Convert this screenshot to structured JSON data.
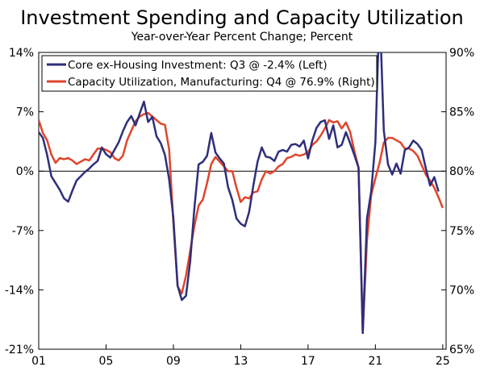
{
  "chart_data": {
    "type": "line",
    "title": "Investment Spending and Capacity Utilization",
    "subtitle": "Year-over-Year Percent Change; Percent",
    "xlabel": "",
    "ylabel_left": "",
    "ylabel_right": "",
    "x_ticks": [
      "01",
      "05",
      "09",
      "13",
      "17",
      "21",
      "25"
    ],
    "x_tick_values": [
      2001,
      2005,
      2009,
      2013,
      2017,
      2021,
      2025
    ],
    "xlim": [
      2001,
      2025.2
    ],
    "y_left_ticks": [
      "14%",
      "7%",
      "0%",
      "-7%",
      "-14%",
      "-21%"
    ],
    "y_left_tick_values": [
      14,
      7,
      0,
      -7,
      -14,
      -21
    ],
    "ylim_left": [
      -21,
      14
    ],
    "y_right_ticks": [
      "90%",
      "85%",
      "80%",
      "75%",
      "70%",
      "65%"
    ],
    "y_right_tick_values": [
      90,
      85,
      80,
      75,
      70,
      65
    ],
    "ylim_right": [
      65,
      90
    ],
    "zero_line": 0,
    "legend": "top-left",
    "grid": false,
    "series": [
      {
        "name": "Core ex-Housing Investment: Q3 @ -2.4% (Left)",
        "axis": "left",
        "color": "#2e2f7a",
        "points": [
          [
            2001.0,
            4.6
          ],
          [
            2001.25,
            3.9
          ],
          [
            2001.5,
            1.9
          ],
          [
            2001.75,
            -0.6
          ],
          [
            2002.0,
            -1.4
          ],
          [
            2002.25,
            -2.2
          ],
          [
            2002.5,
            -3.2
          ],
          [
            2002.75,
            -3.6
          ],
          [
            2003.0,
            -2.3
          ],
          [
            2003.25,
            -1.1
          ],
          [
            2003.5,
            -0.6
          ],
          [
            2003.75,
            -0.1
          ],
          [
            2004.0,
            0.3
          ],
          [
            2004.25,
            0.8
          ],
          [
            2004.5,
            1.2
          ],
          [
            2004.75,
            2.8
          ],
          [
            2005.0,
            2.0
          ],
          [
            2005.25,
            1.6
          ],
          [
            2005.5,
            2.5
          ],
          [
            2005.75,
            3.4
          ],
          [
            2006.0,
            4.7
          ],
          [
            2006.25,
            5.8
          ],
          [
            2006.5,
            6.5
          ],
          [
            2006.75,
            5.4
          ],
          [
            2007.0,
            6.8
          ],
          [
            2007.25,
            8.2
          ],
          [
            2007.5,
            5.8
          ],
          [
            2007.75,
            6.4
          ],
          [
            2008.0,
            4.1
          ],
          [
            2008.25,
            3.3
          ],
          [
            2008.5,
            1.9
          ],
          [
            2008.75,
            -1.0
          ],
          [
            2009.0,
            -5.5
          ],
          [
            2009.25,
            -13.5
          ],
          [
            2009.5,
            -15.2
          ],
          [
            2009.75,
            -14.7
          ],
          [
            2010.0,
            -10.6
          ],
          [
            2010.25,
            -4.3
          ],
          [
            2010.5,
            0.8
          ],
          [
            2010.75,
            1.1
          ],
          [
            2011.0,
            1.8
          ],
          [
            2011.25,
            4.5
          ],
          [
            2011.5,
            2.2
          ],
          [
            2011.75,
            1.5
          ],
          [
            2012.0,
            0.9
          ],
          [
            2012.25,
            -1.9
          ],
          [
            2012.5,
            -3.4
          ],
          [
            2012.75,
            -5.6
          ],
          [
            2013.0,
            -6.2
          ],
          [
            2013.25,
            -6.5
          ],
          [
            2013.5,
            -4.8
          ],
          [
            2013.75,
            -1.7
          ],
          [
            2014.0,
            1.1
          ],
          [
            2014.25,
            2.8
          ],
          [
            2014.5,
            1.7
          ],
          [
            2014.75,
            1.6
          ],
          [
            2015.0,
            1.2
          ],
          [
            2015.25,
            2.3
          ],
          [
            2015.5,
            2.5
          ],
          [
            2015.75,
            2.3
          ],
          [
            2016.0,
            3.1
          ],
          [
            2016.25,
            3.2
          ],
          [
            2016.5,
            2.9
          ],
          [
            2016.75,
            3.6
          ],
          [
            2017.0,
            1.5
          ],
          [
            2017.25,
            3.6
          ],
          [
            2017.5,
            5.1
          ],
          [
            2017.75,
            5.8
          ],
          [
            2018.0,
            6.0
          ],
          [
            2018.25,
            3.8
          ],
          [
            2018.5,
            5.4
          ],
          [
            2018.75,
            2.8
          ],
          [
            2019.0,
            3.1
          ],
          [
            2019.25,
            4.6
          ],
          [
            2019.5,
            3.3
          ],
          [
            2019.75,
            1.9
          ],
          [
            2020.0,
            0.4
          ],
          [
            2020.25,
            -19.1
          ],
          [
            2020.5,
            -5.6
          ],
          [
            2020.75,
            -2.4
          ],
          [
            2021.0,
            3.4
          ],
          [
            2021.25,
            19.5
          ],
          [
            2021.5,
            4.8
          ],
          [
            2021.75,
            0.8
          ],
          [
            2022.0,
            -0.4
          ],
          [
            2022.25,
            0.9
          ],
          [
            2022.5,
            -0.3
          ],
          [
            2022.75,
            2.5
          ],
          [
            2023.0,
            2.8
          ],
          [
            2023.25,
            3.6
          ],
          [
            2023.5,
            3.2
          ],
          [
            2023.75,
            2.5
          ],
          [
            2024.0,
            0.3
          ],
          [
            2024.25,
            -1.7
          ],
          [
            2024.5,
            -0.7
          ],
          [
            2024.75,
            -2.4
          ]
        ]
      },
      {
        "name": "Capacity Utilization, Manufacturing: Q4 @ 76.9% (Right)",
        "axis": "right",
        "color": "#e0452b",
        "points": [
          [
            2001.0,
            84.3
          ],
          [
            2001.25,
            83.2
          ],
          [
            2001.5,
            82.6
          ],
          [
            2001.75,
            81.4
          ],
          [
            2002.0,
            80.7
          ],
          [
            2002.25,
            81.1
          ],
          [
            2002.5,
            81.0
          ],
          [
            2002.75,
            81.1
          ],
          [
            2003.0,
            80.9
          ],
          [
            2003.25,
            80.6
          ],
          [
            2003.5,
            80.8
          ],
          [
            2003.75,
            81.0
          ],
          [
            2004.0,
            80.9
          ],
          [
            2004.25,
            81.4
          ],
          [
            2004.5,
            81.9
          ],
          [
            2004.75,
            81.9
          ],
          [
            2005.0,
            81.8
          ],
          [
            2005.25,
            81.6
          ],
          [
            2005.5,
            81.1
          ],
          [
            2005.75,
            80.9
          ],
          [
            2006.0,
            81.3
          ],
          [
            2006.25,
            82.6
          ],
          [
            2006.5,
            83.4
          ],
          [
            2006.75,
            84.2
          ],
          [
            2007.0,
            84.6
          ],
          [
            2007.25,
            84.8
          ],
          [
            2007.5,
            84.9
          ],
          [
            2007.75,
            84.6
          ],
          [
            2008.0,
            84.3
          ],
          [
            2008.25,
            84.0
          ],
          [
            2008.5,
            83.9
          ],
          [
            2008.75,
            81.8
          ],
          [
            2009.0,
            75.6
          ],
          [
            2009.25,
            70.3
          ],
          [
            2009.5,
            69.7
          ],
          [
            2009.75,
            71.2
          ],
          [
            2010.0,
            73.3
          ],
          [
            2010.25,
            75.4
          ],
          [
            2010.5,
            77.1
          ],
          [
            2010.75,
            77.6
          ],
          [
            2011.0,
            79.0
          ],
          [
            2011.25,
            80.6
          ],
          [
            2011.5,
            81.2
          ],
          [
            2011.75,
            80.8
          ],
          [
            2012.0,
            80.4
          ],
          [
            2012.25,
            80.0
          ],
          [
            2012.5,
            80.0
          ],
          [
            2012.75,
            78.6
          ],
          [
            2013.0,
            77.4
          ],
          [
            2013.25,
            77.8
          ],
          [
            2013.5,
            77.7
          ],
          [
            2013.75,
            78.2
          ],
          [
            2014.0,
            78.3
          ],
          [
            2014.25,
            79.3
          ],
          [
            2014.5,
            80.0
          ],
          [
            2014.75,
            79.8
          ],
          [
            2015.0,
            80.0
          ],
          [
            2015.25,
            80.4
          ],
          [
            2015.5,
            80.6
          ],
          [
            2015.75,
            81.1
          ],
          [
            2016.0,
            81.2
          ],
          [
            2016.25,
            81.4
          ],
          [
            2016.5,
            81.3
          ],
          [
            2016.75,
            81.4
          ],
          [
            2017.0,
            81.6
          ],
          [
            2017.25,
            82.2
          ],
          [
            2017.5,
            82.5
          ],
          [
            2017.75,
            83.0
          ],
          [
            2018.0,
            83.6
          ],
          [
            2018.25,
            84.3
          ],
          [
            2018.5,
            84.1
          ],
          [
            2018.75,
            84.2
          ],
          [
            2019.0,
            83.6
          ],
          [
            2019.25,
            84.1
          ],
          [
            2019.5,
            83.3
          ],
          [
            2019.75,
            81.7
          ],
          [
            2020.0,
            80.3
          ],
          [
            2020.25,
            66.4
          ],
          [
            2020.5,
            74.2
          ],
          [
            2020.75,
            78.0
          ],
          [
            2021.0,
            79.4
          ],
          [
            2021.25,
            80.7
          ],
          [
            2021.5,
            82.4
          ],
          [
            2021.75,
            82.8
          ],
          [
            2022.0,
            82.8
          ],
          [
            2022.25,
            82.6
          ],
          [
            2022.5,
            82.4
          ],
          [
            2022.75,
            81.9
          ],
          [
            2023.0,
            81.9
          ],
          [
            2023.25,
            81.7
          ],
          [
            2023.5,
            81.3
          ],
          [
            2023.75,
            80.5
          ],
          [
            2024.0,
            79.7
          ],
          [
            2024.25,
            79.2
          ],
          [
            2024.5,
            78.6
          ],
          [
            2024.75,
            77.8
          ],
          [
            2025.0,
            76.9
          ]
        ]
      }
    ]
  }
}
